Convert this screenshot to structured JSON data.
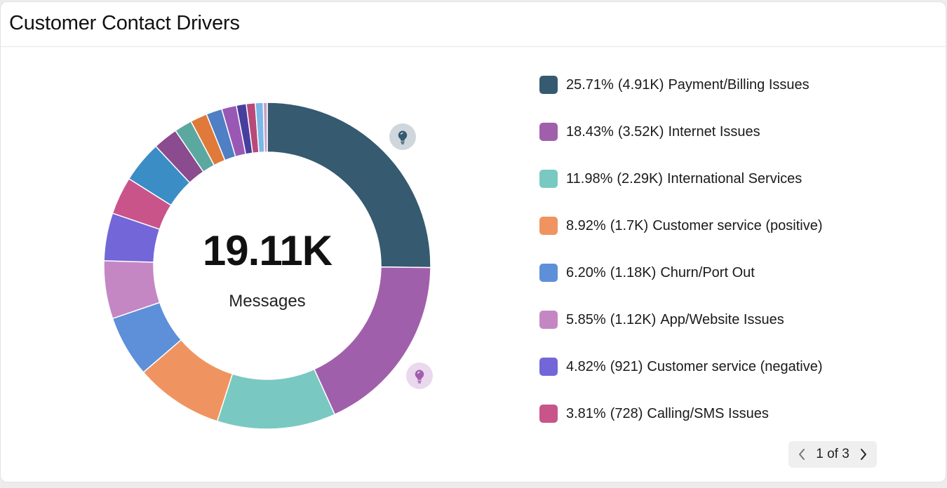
{
  "card": {
    "title": "Customer Contact Drivers"
  },
  "center": {
    "value": "19.11K",
    "label": "Messages"
  },
  "chart_data": {
    "type": "pie",
    "donut": true,
    "total": "19.11K",
    "total_label": "Messages",
    "legend_position": "right",
    "segments": [
      {
        "name": "Payment/Billing Issues",
        "percent": 25.71,
        "percent_label": "25.71%",
        "count_label": "(4.91K)",
        "color": "#365a6f"
      },
      {
        "name": "Internet Issues",
        "percent": 18.43,
        "percent_label": "18.43%",
        "count_label": "(3.52K)",
        "color": "#a05fab"
      },
      {
        "name": "International Services",
        "percent": 11.98,
        "percent_label": "11.98%",
        "count_label": "(2.29K)",
        "color": "#7ac8c2"
      },
      {
        "name": "Customer service (positive)",
        "percent": 8.92,
        "percent_label": "8.92%",
        "count_label": "(1.7K)",
        "color": "#ef9460"
      },
      {
        "name": "Churn/Port Out",
        "percent": 6.2,
        "percent_label": "6.20%",
        "count_label": "(1.18K)",
        "color": "#5e8fd9"
      },
      {
        "name": "App/Website Issues",
        "percent": 5.85,
        "percent_label": "5.85%",
        "count_label": "(1.12K)",
        "color": "#c487c4"
      },
      {
        "name": "Customer service (negative)",
        "percent": 4.82,
        "percent_label": "4.82%",
        "count_label": "(921)",
        "color": "#7366d8"
      },
      {
        "name": "Calling/SMS Issues",
        "percent": 3.81,
        "percent_label": "3.81%",
        "count_label": "(728)",
        "color": "#c9548a"
      }
    ],
    "unlabeled_segments": [
      {
        "percent": 4.2,
        "color": "#3b8dc6"
      },
      {
        "percent": 2.5,
        "color": "#8a4b8f"
      },
      {
        "percent": 1.8,
        "color": "#5ba8a0"
      },
      {
        "percent": 1.7,
        "color": "#e07a3a"
      },
      {
        "percent": 1.6,
        "color": "#4f7fc4"
      },
      {
        "percent": 1.5,
        "color": "#9a58b5"
      },
      {
        "percent": 1.0,
        "color": "#473f9e"
      },
      {
        "percent": 0.9,
        "color": "#b84a7a"
      },
      {
        "percent": 0.8,
        "color": "#7ab8e8"
      },
      {
        "percent": 0.4,
        "color": "#c8a0c8"
      }
    ]
  },
  "insights": [
    {
      "name": "insight-payment",
      "color": "#365a6f",
      "bg": "#cfd7dd"
    },
    {
      "name": "insight-internet",
      "color": "#a05fab",
      "bg": "#ead8ee"
    }
  ],
  "pager": {
    "label": "1 of 3"
  }
}
